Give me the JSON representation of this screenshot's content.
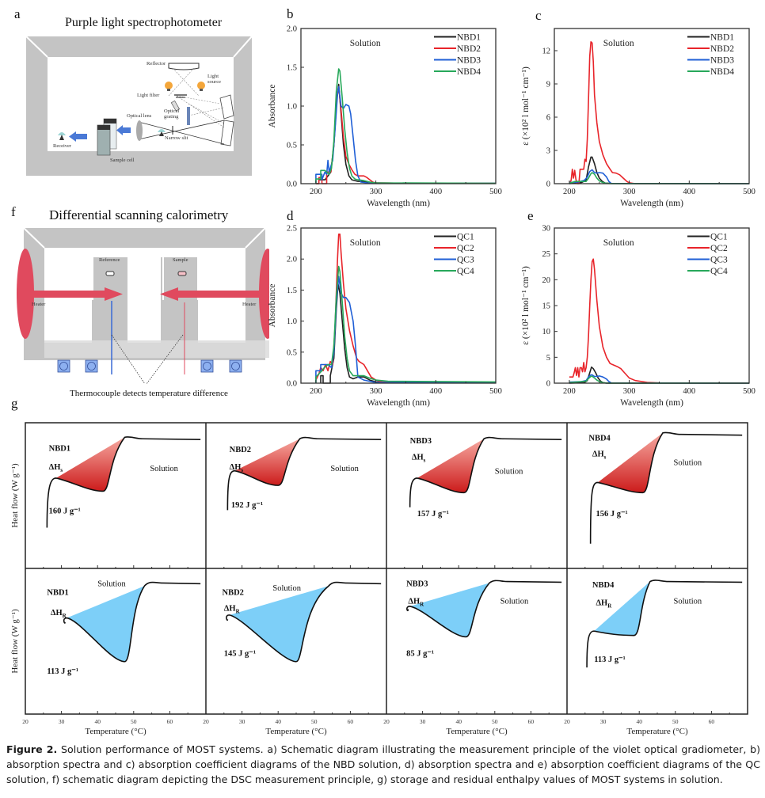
{
  "panels": {
    "a": {
      "letter": "a",
      "title": "Purple light spectrophotometer",
      "labels": {
        "reflector": "Reflector",
        "light_source_1": "Light",
        "light_source_2": "source",
        "light_filter": "Light filter",
        "optical_grating_1": "Optical",
        "optical_grating_2": "grating",
        "optical_lens": "Optical lens",
        "narrow_slit": "Narrow slit",
        "receiver": "Receiver",
        "sample_cell": "Sample cell"
      }
    },
    "f": {
      "letter": "f",
      "title": "Differential scanning calorimetry",
      "labels": {
        "reference": "Reference",
        "sample": "Sample",
        "heater_left": "Heater",
        "heater_right": "Heater",
        "thermocouple": "Thermocouple detects temperature difference"
      }
    },
    "g": {
      "letter": "g"
    }
  },
  "colors": {
    "black": "#222222",
    "red": "#e8242a",
    "blue": "#1f5fd6",
    "green": "#27a85a",
    "storage_fill": "#cc1b1b",
    "release_fill": "#7dcff8"
  },
  "chart_data": [
    {
      "id": "b",
      "letter": "b",
      "type": "line",
      "title": "",
      "annotation": "Solution",
      "xlabel": "Wavelength (nm)",
      "ylabel": "Absorbance",
      "xlim": [
        175,
        500
      ],
      "ylim": [
        0,
        2.0
      ],
      "xticks": [
        200,
        300,
        400,
        500
      ],
      "yticks": [
        0.0,
        0.5,
        1.0,
        1.5,
        2.0
      ],
      "ytick_labels": [
        "0.0",
        "0.5",
        "1.0",
        "1.5",
        "2.0"
      ],
      "legend": "top-right",
      "series": [
        {
          "name": "NBD1",
          "color": "#222222",
          "x": [
            200,
            205,
            205,
            210,
            215,
            220,
            225,
            230,
            235,
            238,
            242,
            246,
            250,
            255,
            260,
            270,
            280,
            290,
            300,
            350,
            500
          ],
          "y": [
            0,
            0,
            0.05,
            0.05,
            0.05,
            0.1,
            0.15,
            0.5,
            1.1,
            1.28,
            0.9,
            0.5,
            0.25,
            0.1,
            0.05,
            0.03,
            0.03,
            0.01,
            0.01,
            0.005,
            0.005
          ]
        },
        {
          "name": "NBD2",
          "color": "#e8242a",
          "x": [
            200,
            205,
            205,
            210,
            210,
            218,
            218,
            225,
            230,
            235,
            238,
            242,
            246,
            250,
            255,
            260,
            265,
            270,
            275,
            280,
            285,
            290,
            295,
            300,
            350,
            500
          ],
          "y": [
            0,
            0,
            0.08,
            0.08,
            0,
            0,
            0.15,
            0.15,
            0.5,
            1.1,
            1.25,
            0.95,
            0.6,
            0.35,
            0.25,
            0.18,
            0.12,
            0.1,
            0.1,
            0.1,
            0.08,
            0.05,
            0.02,
            0.01,
            0.005,
            0.005
          ]
        },
        {
          "name": "NBD3",
          "color": "#1f5fd6",
          "x": [
            200,
            200,
            210,
            210,
            215,
            218,
            220,
            222,
            228,
            232,
            236,
            238,
            242,
            246,
            250,
            255,
            258,
            262,
            266,
            270,
            275,
            285,
            300,
            500
          ],
          "y": [
            0,
            0.12,
            0.12,
            0.05,
            0.15,
            0.12,
            0.3,
            0.15,
            0.3,
            0.7,
            1.15,
            1.25,
            1.0,
            0.97,
            1.02,
            1.0,
            0.9,
            0.6,
            0.3,
            0.1,
            0.02,
            0.01,
            0.005,
            0.005
          ]
        },
        {
          "name": "NBD4",
          "color": "#27a85a",
          "x": [
            200,
            200,
            208,
            208,
            215,
            218,
            222,
            226,
            230,
            234,
            238,
            240,
            244,
            248,
            252,
            256,
            260,
            265,
            270,
            280,
            290,
            300,
            500
          ],
          "y": [
            0,
            0.06,
            0.06,
            0.17,
            0.17,
            0.15,
            0.12,
            0.2,
            0.55,
            1.2,
            1.48,
            1.45,
            1.1,
            0.7,
            0.4,
            0.2,
            0.1,
            0.06,
            0.05,
            0.04,
            0.02,
            0.01,
            0.005
          ]
        }
      ]
    },
    {
      "id": "c",
      "letter": "c",
      "type": "line",
      "title": "",
      "annotation": "Solution",
      "xlabel": "Wavelength (nm)",
      "ylabel": "ε (×10² l mol⁻¹ cm⁻¹)",
      "xlim": [
        175,
        500
      ],
      "ylim": [
        0,
        14
      ],
      "xticks": [
        200,
        300,
        400,
        500
      ],
      "yticks": [
        0,
        3,
        6,
        9,
        12
      ],
      "ytick_labels": [
        "0",
        "3",
        "6",
        "9",
        "12"
      ],
      "legend": "top-right",
      "series": [
        {
          "name": "NBD1",
          "color": "#222222",
          "x": [
            200,
            220,
            228,
            232,
            236,
            238,
            242,
            246,
            250,
            255,
            260,
            270,
            500
          ],
          "y": [
            0,
            0.1,
            0.3,
            1.5,
            2.4,
            2.4,
            1.8,
            1.0,
            0.5,
            0.2,
            0.05,
            0.02,
            0
          ]
        },
        {
          "name": "NBD2",
          "color": "#e8242a",
          "x": [
            200,
            203,
            205,
            207,
            209,
            211,
            213,
            216,
            218,
            224,
            226,
            228,
            230,
            232,
            234,
            236,
            238,
            240,
            242,
            246,
            250,
            256,
            262,
            268,
            272,
            278,
            284,
            290,
            296,
            300,
            310,
            500
          ],
          "y": [
            0,
            0.3,
            1.3,
            0.5,
            1.2,
            0.4,
            0,
            0,
            1.3,
            1.3,
            2.2,
            2.0,
            4.0,
            7.5,
            11.5,
            12.8,
            12.7,
            11.0,
            8.0,
            5.5,
            3.8,
            2.6,
            1.8,
            1.3,
            1.0,
            0.95,
            0.8,
            0.5,
            0.2,
            0.08,
            0,
            0
          ]
        },
        {
          "name": "NBD3",
          "color": "#1f5fd6",
          "x": [
            200,
            215,
            225,
            230,
            234,
            238,
            242,
            246,
            250,
            256,
            262,
            266,
            270,
            500
          ],
          "y": [
            0.1,
            0.15,
            0.3,
            0.6,
            1.1,
            1.25,
            1.0,
            0.95,
            1.0,
            0.95,
            0.6,
            0.2,
            0.02,
            0
          ]
        },
        {
          "name": "NBD4",
          "color": "#27a85a",
          "x": [
            200,
            210,
            220,
            228,
            232,
            236,
            238,
            242,
            246,
            250,
            256,
            262,
            270,
            500
          ],
          "y": [
            0.05,
            0.2,
            0.2,
            0.2,
            0.5,
            0.9,
            1.0,
            0.85,
            0.5,
            0.25,
            0.1,
            0.03,
            0.01,
            0
          ]
        }
      ]
    },
    {
      "id": "d",
      "letter": "d",
      "type": "line",
      "title": "",
      "annotation": "Solution",
      "xlabel": "Wavelength (nm)",
      "ylabel": "Absorbance",
      "xlim": [
        175,
        500
      ],
      "ylim": [
        0,
        2.5
      ],
      "xticks": [
        200,
        300,
        400,
        500
      ],
      "yticks": [
        0.0,
        0.5,
        1.0,
        1.5,
        2.0,
        2.5
      ],
      "ytick_labels": [
        "0.0",
        "0.5",
        "1.0",
        "1.5",
        "2.0",
        "2.5"
      ],
      "legend": "top-right",
      "series": [
        {
          "name": "QC1",
          "color": "#222222",
          "x": [
            208,
            208,
            212,
            212,
            224,
            224,
            230,
            234,
            237,
            240,
            244,
            248,
            252,
            256,
            262,
            270,
            280,
            290,
            300,
            350,
            500
          ],
          "y": [
            0,
            0.12,
            0.12,
            0.0,
            0.0,
            0.12,
            0.4,
            1.2,
            1.6,
            1.45,
            1.0,
            0.55,
            0.25,
            0.1,
            0.07,
            0.1,
            0.1,
            0.05,
            0.02,
            0.01,
            0.01
          ]
        },
        {
          "name": "QC2",
          "color": "#e8242a",
          "x": [
            200,
            205,
            208,
            212,
            216,
            220,
            224,
            228,
            232,
            236,
            238,
            240,
            242,
            246,
            250,
            256,
            262,
            268,
            272,
            280,
            286,
            292,
            300,
            310,
            350,
            500
          ],
          "y": [
            0.05,
            0.15,
            0.25,
            0.2,
            0.3,
            0.2,
            0.35,
            0.3,
            0.9,
            2.0,
            2.4,
            2.4,
            2.1,
            1.6,
            1.2,
            0.85,
            0.6,
            0.4,
            0.35,
            0.3,
            0.2,
            0.1,
            0.05,
            0.02,
            0.01,
            0.01
          ]
        },
        {
          "name": "QC3",
          "color": "#1f5fd6",
          "x": [
            200,
            200,
            208,
            208,
            212,
            220,
            226,
            230,
            234,
            238,
            242,
            246,
            250,
            256,
            262,
            266,
            270,
            280,
            290,
            300,
            500
          ],
          "y": [
            0,
            0.2,
            0.2,
            0.3,
            0.3,
            0.3,
            0.25,
            0.5,
            1.3,
            1.72,
            1.45,
            1.38,
            1.38,
            1.3,
            1.0,
            0.6,
            0.1,
            0.05,
            0.03,
            0.01,
            0.01
          ]
        },
        {
          "name": "QC4",
          "color": "#27a85a",
          "x": [
            200,
            200,
            210,
            214,
            220,
            226,
            230,
            234,
            238,
            240,
            244,
            248,
            252,
            256,
            262,
            270,
            280,
            290,
            300,
            320,
            500
          ],
          "y": [
            0,
            0.1,
            0.2,
            0.25,
            0.3,
            0.3,
            0.6,
            1.4,
            1.88,
            1.8,
            1.3,
            0.75,
            0.4,
            0.2,
            0.12,
            0.12,
            0.12,
            0.08,
            0.05,
            0.03,
            0.02
          ]
        }
      ]
    },
    {
      "id": "e",
      "letter": "e",
      "type": "line",
      "title": "",
      "annotation": "Solution",
      "xlabel": "Wavelength (nm)",
      "ylabel": "ε (×10² l mol⁻¹ cm⁻¹)",
      "xlim": [
        175,
        500
      ],
      "ylim": [
        0,
        30
      ],
      "xticks": [
        200,
        300,
        400,
        500
      ],
      "yticks": [
        0,
        5,
        10,
        15,
        20,
        25,
        30
      ],
      "ytick_labels": [
        "0",
        "5",
        "10",
        "15",
        "20",
        "25",
        "30"
      ],
      "legend": "top-right",
      "series": [
        {
          "name": "QC1",
          "color": "#222222",
          "x": [
            200,
            225,
            230,
            234,
            237,
            240,
            244,
            248,
            252,
            256,
            262,
            500
          ],
          "y": [
            0,
            0.1,
            0.5,
            2.0,
            3.1,
            2.8,
            2.0,
            1.0,
            0.4,
            0.1,
            0.02,
            0
          ]
        },
        {
          "name": "QC2",
          "color": "#e8242a",
          "x": [
            200,
            206,
            208,
            210,
            212,
            214,
            216,
            218,
            220,
            222,
            224,
            226,
            228,
            230,
            232,
            234,
            236,
            238,
            240,
            242,
            246,
            250,
            256,
            262,
            268,
            274,
            280,
            286,
            292,
            300,
            310,
            330,
            350,
            500
          ],
          "y": [
            1.2,
            1.2,
            2.0,
            3.0,
            1.5,
            3.0,
            1.2,
            3.0,
            3.0,
            2.2,
            4.0,
            2.2,
            3.0,
            5.0,
            9.0,
            15.0,
            20.0,
            23.5,
            24.0,
            22.0,
            16.0,
            11.0,
            7.0,
            5.0,
            3.8,
            3.5,
            3.2,
            2.8,
            2.0,
            1.0,
            0.5,
            0.15,
            0.05,
            0
          ]
        },
        {
          "name": "QC3",
          "color": "#1f5fd6",
          "x": [
            200,
            220,
            228,
            232,
            236,
            238,
            242,
            246,
            250,
            256,
            262,
            266,
            270,
            500
          ],
          "y": [
            0.2,
            0.3,
            0.5,
            1.2,
            1.6,
            1.6,
            1.3,
            1.3,
            1.4,
            1.2,
            0.8,
            0.3,
            0.05,
            0
          ]
        },
        {
          "name": "QC4",
          "color": "#27a85a",
          "x": [
            200,
            220,
            228,
            232,
            236,
            238,
            242,
            246,
            250,
            256,
            262,
            500
          ],
          "y": [
            0.1,
            0.3,
            0.4,
            0.9,
            1.3,
            1.35,
            1.0,
            0.6,
            0.3,
            0.1,
            0.02,
            0
          ]
        }
      ]
    },
    {
      "id": "g",
      "letter": "g",
      "type": "line",
      "title": "",
      "xlabel": "Temperature (°C)",
      "ylabel": "Heat flow (W g⁻¹)",
      "xlim": [
        20,
        70
      ],
      "xticks": [
        20,
        30,
        40,
        50,
        60
      ],
      "rows": [
        {
          "kind": "storage",
          "symbol": "ΔH",
          "subscript": "s",
          "panels": [
            {
              "name": "NBD1",
              "enthalpy": "160 J g⁻¹",
              "annotation": "Solution"
            },
            {
              "name": "NBD2",
              "enthalpy": "192 J g⁻¹",
              "annotation": "Solution"
            },
            {
              "name": "NBD3",
              "enthalpy": "157 J g⁻¹",
              "annotation": "Solution"
            },
            {
              "name": "NBD4",
              "enthalpy": "156 J g⁻¹",
              "annotation": "Solution"
            }
          ]
        },
        {
          "kind": "residual",
          "symbol": "ΔH",
          "subscript": "R",
          "panels": [
            {
              "name": "NBD1",
              "enthalpy": "113 J g⁻¹",
              "annotation": "Solution"
            },
            {
              "name": "NBD2",
              "enthalpy": "145 J g⁻¹",
              "annotation": "Solution"
            },
            {
              "name": "NBD3",
              "enthalpy": "85 J g⁻¹",
              "annotation": "Solution"
            },
            {
              "name": "NBD4",
              "enthalpy": "113 J g⁻¹",
              "annotation": "Solution"
            }
          ]
        }
      ]
    }
  ],
  "caption": {
    "label": "Figure 2.",
    "text": " Solution performance of MOST systems. a) Schematic diagram illustrating the measurement principle of the violet optical gradiometer, b) absorption spectra and c) absorption coefficient diagrams of the NBD solution, d) absorption spectra and e) absorption coefficient diagrams of the QC solution, f) schematic diagram depicting the DSC measurement principle, g) storage and residual enthalpy values of MOST systems in solution."
  }
}
